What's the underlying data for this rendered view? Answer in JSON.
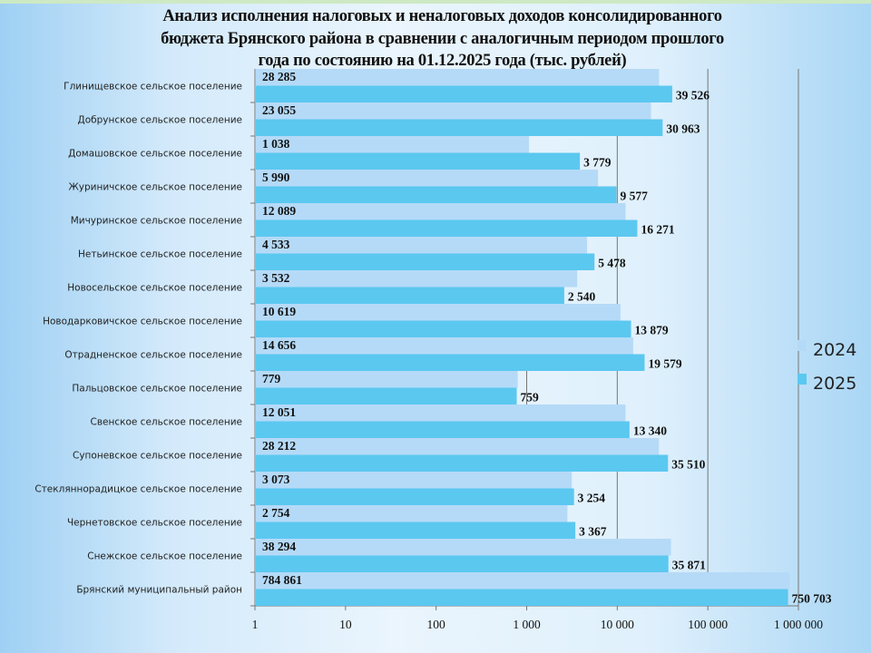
{
  "chart_data": {
    "type": "bar",
    "orientation": "horizontal",
    "title": [
      "Анализ исполнения налоговых и неналоговых доходов консолидированного",
      "бюджета Брянского района в сравнении с аналогичным периодом прошлого",
      "года по состоянию на 01.12.2025 года  (тыс. рублей)"
    ],
    "categories": [
      "Глинищевское  сельское  поселение",
      "Добрунское  сельское  поселение",
      "Домашовское сельское  поселение",
      "Журиничское  сельское  поселение",
      "Мичуринское  сельское  поселение",
      "Нетьинское  сельское  поселение",
      "Новосельское  сельское  поселение",
      "Новодарковичское сельское  поселение",
      "Отрадненское  сельское  поселение",
      "Пальцовское  сельское  поселение",
      "Свенское сельское  поселение",
      "Супоневское  сельское  поселение",
      "Стеклянноpадицкое  сельское  поселение",
      "Чернетовское  сельское  поселение",
      "Снежское сельское  поселение",
      "Брянский  муниципальный  район"
    ],
    "series": [
      {
        "name": "2024",
        "color": "#b5daf7",
        "values": [
          28285,
          23055,
          1038,
          5990,
          12089,
          4533,
          3532,
          10619,
          14656,
          779,
          12051,
          28212,
          3073,
          2754,
          38294,
          784861
        ],
        "labels": [
          "28 285",
          "23 055",
          "1 038",
          "5 990",
          "12 089",
          "4 533",
          "3 532",
          "10 619",
          "14 656",
          "779",
          "12 051",
          "28 212",
          "3 073",
          "2 754",
          "38 294",
          "784 861"
        ]
      },
      {
        "name": "2025",
        "color": "#5bc8f0",
        "values": [
          39526,
          30963,
          3779,
          9577,
          16271,
          5478,
          2540,
          13879,
          19579,
          759,
          13340,
          35510,
          3254,
          3367,
          35871,
          750703
        ],
        "labels": [
          "39 526",
          "30 963",
          "3 779",
          "9 577",
          "16 271",
          "5 478",
          "2 540",
          "13 879",
          "19 579",
          "759",
          "13 340",
          "35 510",
          "3 254",
          "3 367",
          "35 871",
          "750 703"
        ]
      }
    ],
    "xscale": "log",
    "xlim": [
      1,
      1000000
    ],
    "xticks": [
      1,
      10,
      100,
      1000,
      10000,
      100000,
      1000000
    ],
    "xtick_labels": [
      "1",
      "10",
      "100",
      "1 000",
      "10 000",
      "100 000",
      "1 000 000"
    ],
    "grid": "vertical",
    "legend_position": "right"
  }
}
